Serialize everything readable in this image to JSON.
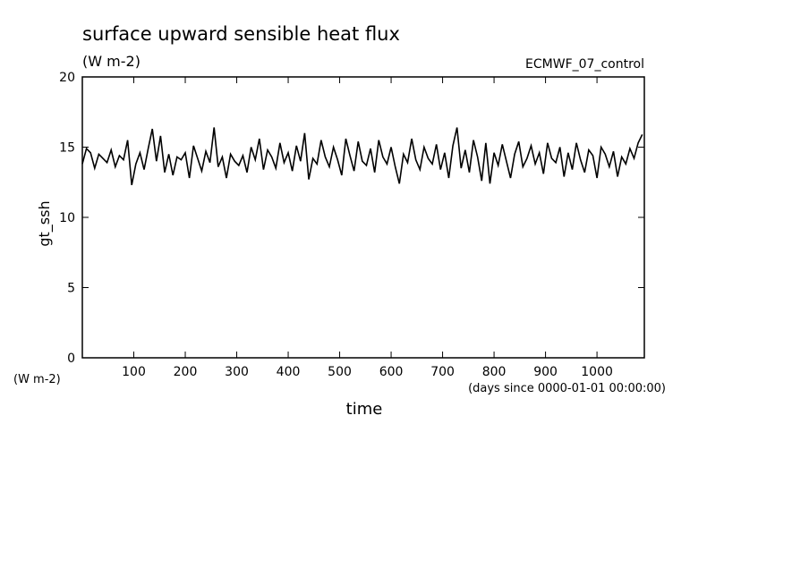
{
  "chart_data": {
    "type": "line",
    "title": "surface upward sensible heat flux",
    "subtitle": "(W m-2)",
    "annotation": "ECMWF_07_control",
    "y_label": "gt_ssh",
    "y_unit": "(W m-2)",
    "x_label": "time",
    "x_unit": "(days since 0000-01-01 00:00:00)",
    "xlim": [
      0,
      1092
    ],
    "ylim": [
      0,
      20
    ],
    "xticks": [
      100,
      200,
      300,
      400,
      500,
      600,
      700,
      800,
      900,
      1000
    ],
    "yticks": [
      0,
      5,
      10,
      15,
      20
    ],
    "x": [
      0,
      8,
      16,
      24,
      32,
      40,
      48,
      56,
      64,
      72,
      80,
      88,
      96,
      104,
      112,
      120,
      128,
      136,
      144,
      152,
      160,
      168,
      176,
      184,
      192,
      200,
      208,
      216,
      224,
      232,
      240,
      248,
      256,
      264,
      272,
      280,
      288,
      296,
      304,
      312,
      320,
      328,
      336,
      344,
      352,
      360,
      368,
      376,
      384,
      392,
      400,
      408,
      416,
      424,
      432,
      440,
      448,
      456,
      464,
      472,
      480,
      488,
      496,
      504,
      512,
      520,
      528,
      536,
      544,
      552,
      560,
      568,
      576,
      584,
      592,
      600,
      608,
      616,
      624,
      632,
      640,
      648,
      656,
      664,
      672,
      680,
      688,
      696,
      704,
      712,
      720,
      728,
      736,
      744,
      752,
      760,
      768,
      776,
      784,
      792,
      800,
      808,
      816,
      824,
      832,
      840,
      848,
      856,
      864,
      872,
      880,
      888,
      896,
      904,
      912,
      920,
      928,
      936,
      944,
      952,
      960,
      968,
      976,
      984,
      992,
      1000,
      1008,
      1016,
      1024,
      1032,
      1040,
      1048,
      1056,
      1064,
      1072,
      1080,
      1088
    ],
    "series": [
      {
        "color": "#000000",
        "values": [
          13.8,
          14.9,
          14.6,
          13.5,
          14.5,
          14.2,
          13.9,
          14.8,
          13.6,
          14.4,
          14.1,
          15.5,
          12.3,
          13.8,
          14.6,
          13.4,
          14.9,
          16.3,
          14.0,
          15.8,
          13.2,
          14.5,
          13.0,
          14.3,
          14.1,
          14.6,
          12.8,
          15.1,
          14.2,
          13.3,
          14.7,
          13.9,
          16.4,
          13.6,
          14.3,
          12.8,
          14.5,
          14.0,
          13.7,
          14.4,
          13.2,
          15.0,
          14.1,
          15.6,
          13.4,
          14.8,
          14.3,
          13.5,
          15.3,
          13.9,
          14.6,
          13.3,
          15.1,
          14.0,
          16.0,
          12.7,
          14.2,
          13.8,
          15.5,
          14.3,
          13.6,
          15.0,
          14.1,
          13.0,
          15.6,
          14.4,
          13.3,
          15.4,
          14.0,
          13.7,
          14.9,
          13.2,
          15.5,
          14.3,
          13.8,
          15.0,
          13.6,
          12.4,
          14.5,
          13.9,
          15.6,
          14.1,
          13.4,
          15.0,
          14.2,
          13.8,
          15.2,
          13.4,
          14.6,
          12.8,
          15.1,
          16.4,
          13.5,
          14.8,
          13.2,
          15.5,
          14.3,
          12.6,
          15.3,
          12.4,
          14.6,
          13.7,
          15.2,
          14.0,
          12.8,
          14.5,
          15.4,
          13.6,
          14.2,
          15.1,
          13.8,
          14.6,
          13.1,
          15.3,
          14.2,
          13.9,
          15.0,
          12.9,
          14.6,
          13.4,
          15.3,
          14.1,
          13.2,
          14.8,
          14.4,
          12.8,
          15.0,
          14.5,
          13.6,
          14.7,
          12.9,
          14.3,
          13.8,
          14.9,
          14.2,
          15.3,
          15.9
        ]
      }
    ]
  }
}
